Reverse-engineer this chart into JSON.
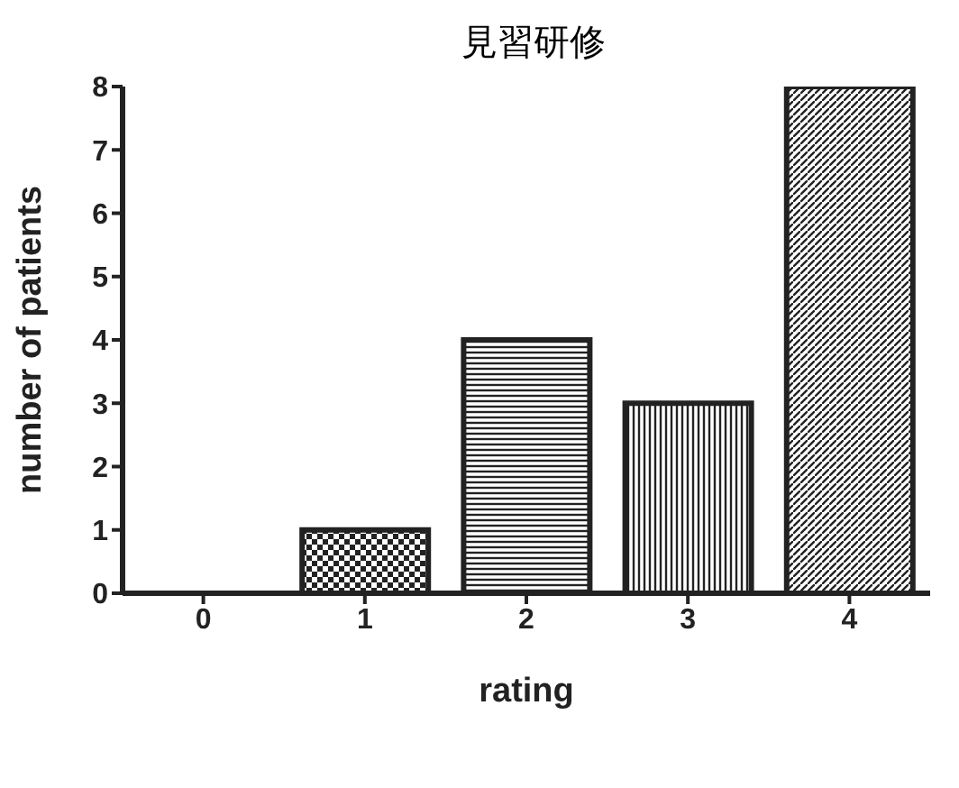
{
  "chart_data": {
    "type": "bar",
    "title": "見習研修",
    "xlabel": "rating",
    "ylabel": "number of patients",
    "categories": [
      "0",
      "1",
      "2",
      "3",
      "4"
    ],
    "values": [
      0,
      1,
      4,
      3,
      8
    ],
    "colors": [
      "#222222",
      "#222222",
      "#222222",
      "#222222",
      "#222222"
    ],
    "ylim": [
      0,
      8
    ],
    "yticks": [
      0,
      1,
      2,
      3,
      4,
      5,
      6,
      7,
      8
    ],
    "grid": false,
    "legend": false
  }
}
